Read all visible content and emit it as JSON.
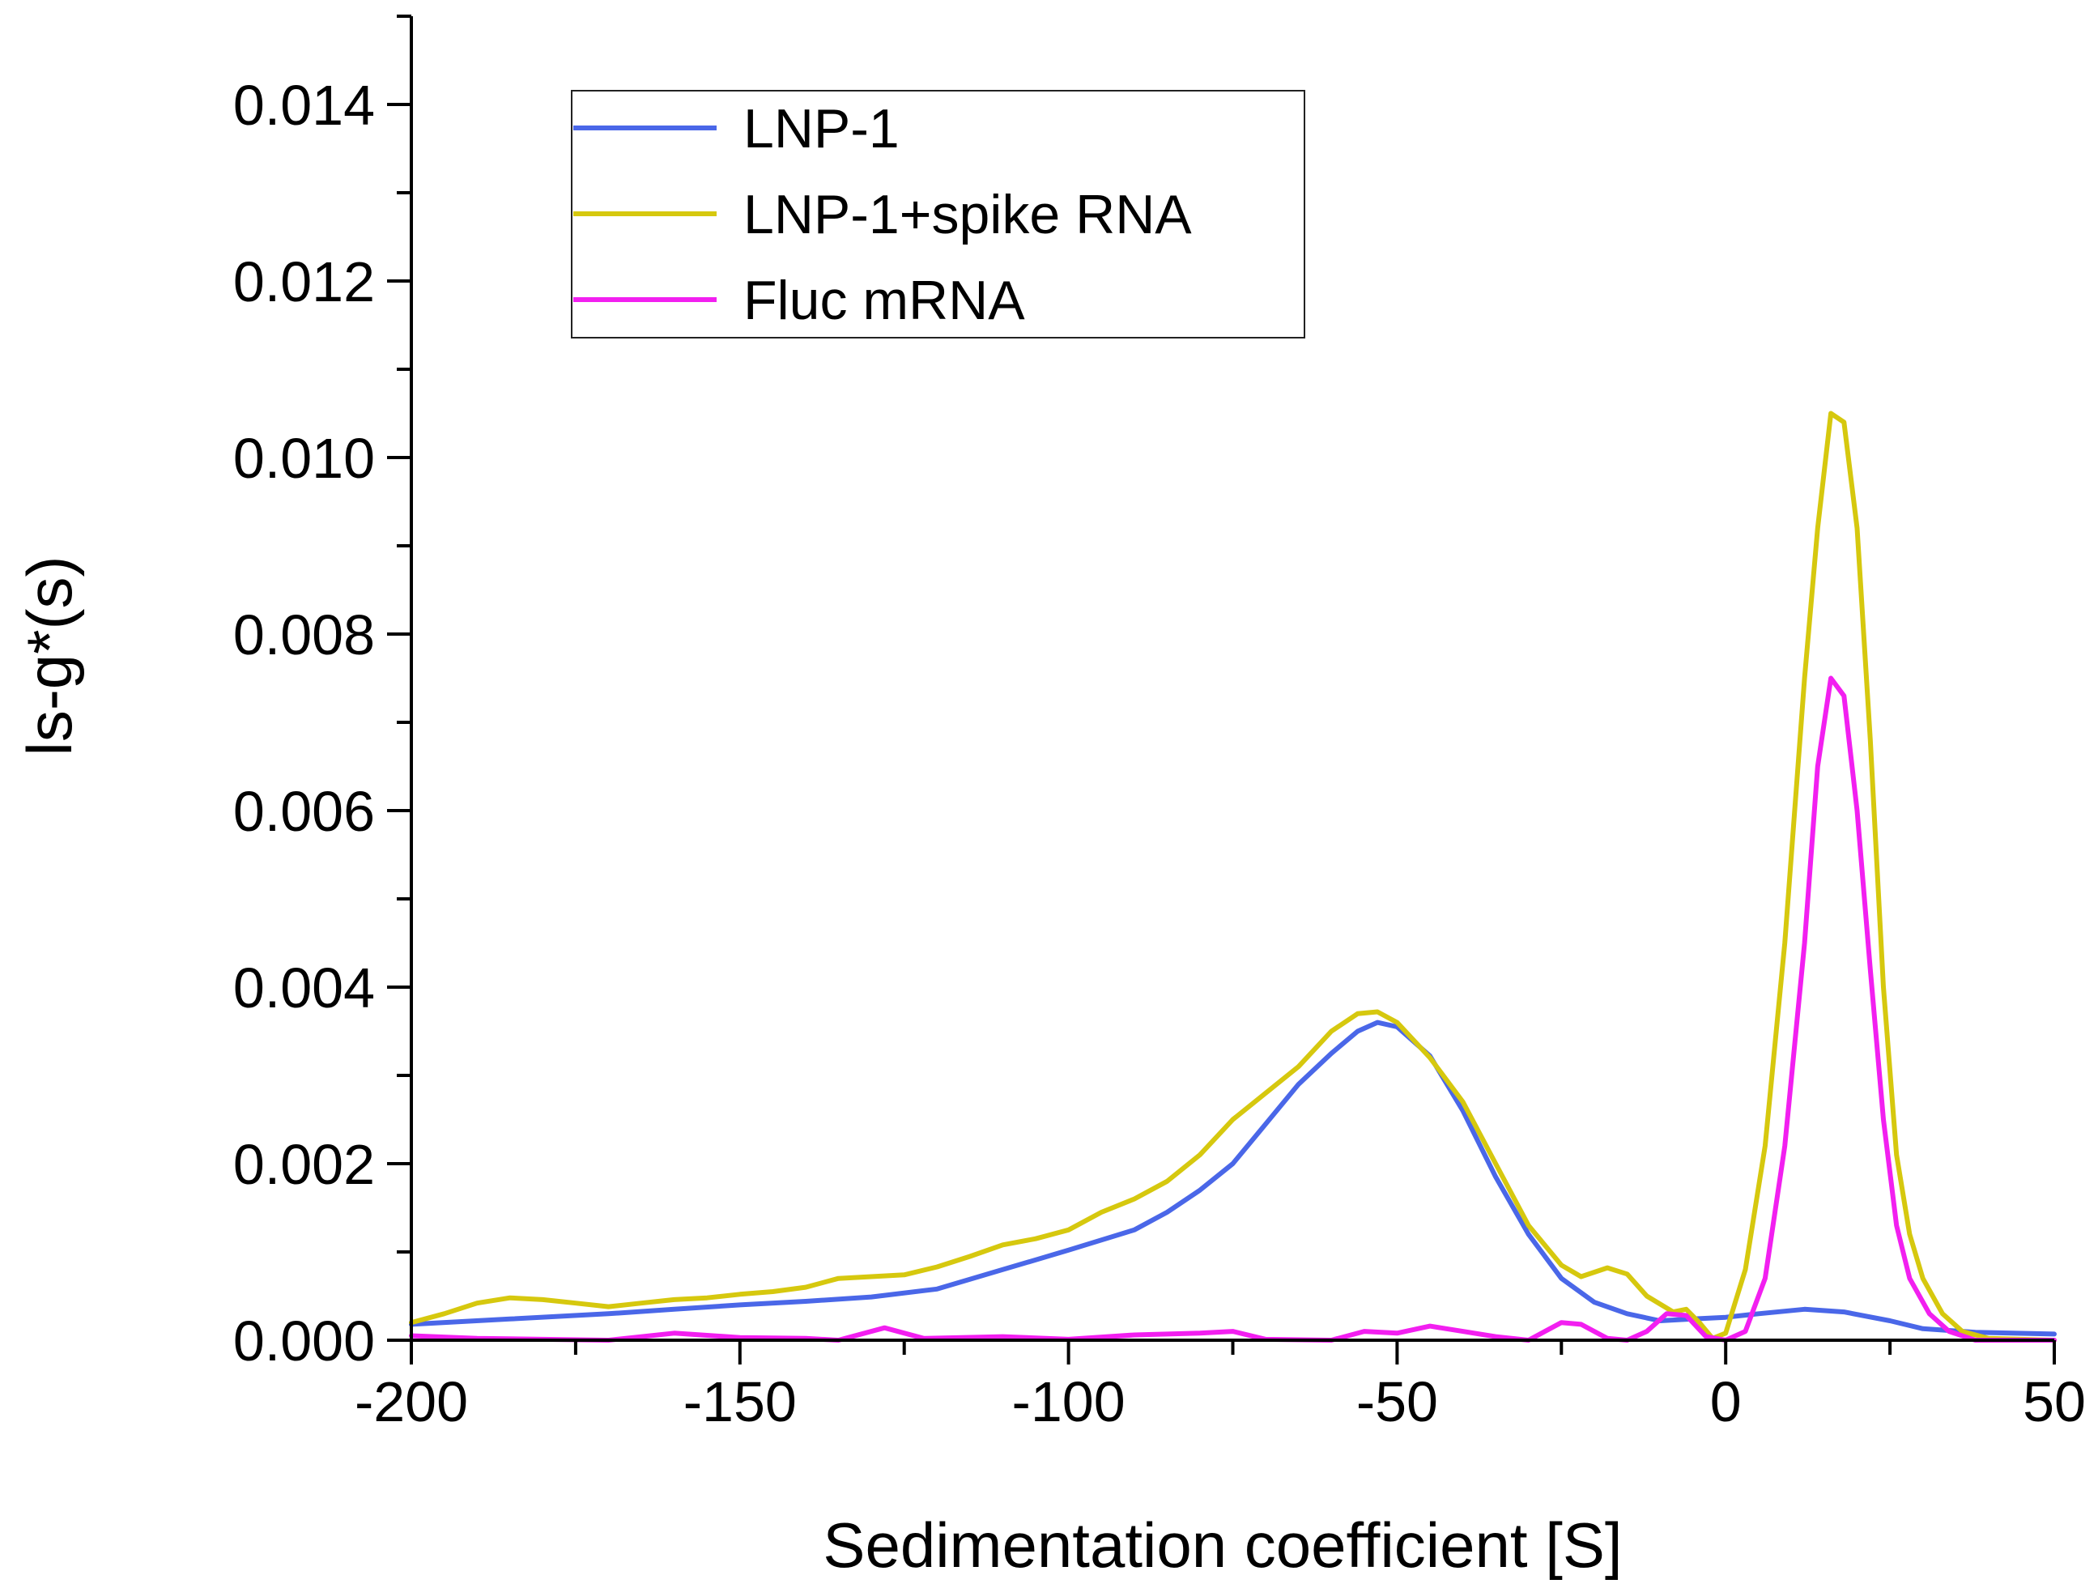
{
  "chart_data": {
    "type": "line",
    "title": "",
    "xlabel": "Sedimentation coefficient [S]",
    "ylabel": "ls-g*(s)",
    "xlim": [
      -200,
      50
    ],
    "ylim": [
      0,
      0.015
    ],
    "x_ticks": [
      -200,
      -150,
      -100,
      -50,
      0,
      50
    ],
    "x_tick_labels": [
      "-200",
      "-150",
      "-100",
      "-50",
      "0",
      "50"
    ],
    "x_minor_step": 25,
    "y_ticks": [
      0.0,
      0.002,
      0.004,
      0.006,
      0.008,
      0.01,
      0.012,
      0.014
    ],
    "y_tick_labels": [
      "0.000",
      "0.002",
      "0.004",
      "0.006",
      "0.008",
      "0.010",
      "0.012",
      "0.014"
    ],
    "y_minor_step": 0.001,
    "grid": false,
    "legend_position": "top-left",
    "series": [
      {
        "name": "LNP-1",
        "color": "#4a67e8",
        "points": [
          [
            -200,
            0.00018
          ],
          [
            -185,
            0.00024
          ],
          [
            -170,
            0.0003
          ],
          [
            -160,
            0.00035
          ],
          [
            -150,
            0.0004
          ],
          [
            -140,
            0.00044
          ],
          [
            -130,
            0.00049
          ],
          [
            -120,
            0.00058
          ],
          [
            -110,
            0.0008
          ],
          [
            -100,
            0.00102
          ],
          [
            -90,
            0.00125
          ],
          [
            -85,
            0.00145
          ],
          [
            -80,
            0.0017
          ],
          [
            -75,
            0.002
          ],
          [
            -70,
            0.00245
          ],
          [
            -65,
            0.0029
          ],
          [
            -60,
            0.00325
          ],
          [
            -56,
            0.0035
          ],
          [
            -53,
            0.0036
          ],
          [
            -50,
            0.00355
          ],
          [
            -45,
            0.00322
          ],
          [
            -40,
            0.0026
          ],
          [
            -35,
            0.00185
          ],
          [
            -30,
            0.0012
          ],
          [
            -25,
            0.0007
          ],
          [
            -20,
            0.00043
          ],
          [
            -15,
            0.0003
          ],
          [
            -10,
            0.00022
          ],
          [
            -5,
            0.00024
          ],
          [
            0,
            0.00026
          ],
          [
            5,
            0.0003
          ],
          [
            12,
            0.00035
          ],
          [
            18,
            0.00032
          ],
          [
            25,
            0.00022
          ],
          [
            30,
            0.00013
          ],
          [
            38,
            9e-05
          ],
          [
            50,
            7e-05
          ]
        ]
      },
      {
        "name": "LNP-1+spike RNA",
        "color": "#d6c80e",
        "points": [
          [
            -200,
            0.0002
          ],
          [
            -195,
            0.0003
          ],
          [
            -190,
            0.00042
          ],
          [
            -185,
            0.00048
          ],
          [
            -180,
            0.00046
          ],
          [
            -175,
            0.00042
          ],
          [
            -170,
            0.00038
          ],
          [
            -165,
            0.00042
          ],
          [
            -160,
            0.00046
          ],
          [
            -155,
            0.00048
          ],
          [
            -150,
            0.00052
          ],
          [
            -145,
            0.00055
          ],
          [
            -140,
            0.0006
          ],
          [
            -135,
            0.0007
          ],
          [
            -130,
            0.00072
          ],
          [
            -125,
            0.00074
          ],
          [
            -120,
            0.00083
          ],
          [
            -115,
            0.00095
          ],
          [
            -110,
            0.00108
          ],
          [
            -105,
            0.00115
          ],
          [
            -100,
            0.00125
          ],
          [
            -95,
            0.00145
          ],
          [
            -90,
            0.0016
          ],
          [
            -85,
            0.0018
          ],
          [
            -80,
            0.0021
          ],
          [
            -75,
            0.0025
          ],
          [
            -70,
            0.0028
          ],
          [
            -65,
            0.0031
          ],
          [
            -60,
            0.0035
          ],
          [
            -56,
            0.0037
          ],
          [
            -53,
            0.00372
          ],
          [
            -50,
            0.0036
          ],
          [
            -45,
            0.0032
          ],
          [
            -40,
            0.0027
          ],
          [
            -35,
            0.002
          ],
          [
            -30,
            0.0013
          ],
          [
            -25,
            0.00085
          ],
          [
            -22,
            0.00072
          ],
          [
            -18,
            0.00082
          ],
          [
            -15,
            0.00075
          ],
          [
            -12,
            0.0005
          ],
          [
            -8,
            0.00032
          ],
          [
            -6,
            0.00035
          ],
          [
            -4,
            0.0002
          ],
          [
            -2,
            2e-05
          ],
          [
            0,
            8e-05
          ],
          [
            3,
            0.0008
          ],
          [
            6,
            0.0022
          ],
          [
            9,
            0.0045
          ],
          [
            12,
            0.0075
          ],
          [
            14,
            0.0092
          ],
          [
            16,
            0.0105
          ],
          [
            18,
            0.0104
          ],
          [
            20,
            0.0092
          ],
          [
            22,
            0.0068
          ],
          [
            24,
            0.004
          ],
          [
            26,
            0.0021
          ],
          [
            28,
            0.0012
          ],
          [
            30,
            0.0007
          ],
          [
            33,
            0.0003
          ],
          [
            36,
            0.0001
          ],
          [
            40,
            2e-05
          ],
          [
            50,
            0.0
          ]
        ]
      },
      {
        "name": "Fluc mRNA",
        "color": "#f21ff0",
        "points": [
          [
            -200,
            5e-05
          ],
          [
            -190,
            2e-05
          ],
          [
            -180,
            1e-05
          ],
          [
            -170,
            0.0
          ],
          [
            -160,
            8e-05
          ],
          [
            -150,
            3e-05
          ],
          [
            -140,
            2e-05
          ],
          [
            -135,
            0.0
          ],
          [
            -128,
            0.00014
          ],
          [
            -122,
            2e-05
          ],
          [
            -110,
            4e-05
          ],
          [
            -100,
            1e-05
          ],
          [
            -90,
            6e-05
          ],
          [
            -80,
            8e-05
          ],
          [
            -75,
            0.0001
          ],
          [
            -70,
            1e-05
          ],
          [
            -60,
            0.0
          ],
          [
            -55,
            0.0001
          ],
          [
            -50,
            8e-05
          ],
          [
            -45,
            0.00016
          ],
          [
            -40,
            0.0001
          ],
          [
            -35,
            4e-05
          ],
          [
            -30,
            0.0
          ],
          [
            -25,
            0.0002
          ],
          [
            -22,
            0.00018
          ],
          [
            -18,
            2e-05
          ],
          [
            -15,
            0.0
          ],
          [
            -12,
            0.0001
          ],
          [
            -9,
            0.0003
          ],
          [
            -6,
            0.00028
          ],
          [
            -3,
            4e-05
          ],
          [
            0,
            0.0
          ],
          [
            3,
            0.0001
          ],
          [
            6,
            0.0007
          ],
          [
            9,
            0.0022
          ],
          [
            12,
            0.0045
          ],
          [
            14,
            0.0065
          ],
          [
            16,
            0.0075
          ],
          [
            18,
            0.0073
          ],
          [
            20,
            0.006
          ],
          [
            22,
            0.0042
          ],
          [
            24,
            0.0025
          ],
          [
            26,
            0.0013
          ],
          [
            28,
            0.0007
          ],
          [
            31,
            0.0003
          ],
          [
            34,
            0.0001
          ],
          [
            38,
            0.0
          ],
          [
            50,
            0.0
          ]
        ]
      }
    ]
  }
}
